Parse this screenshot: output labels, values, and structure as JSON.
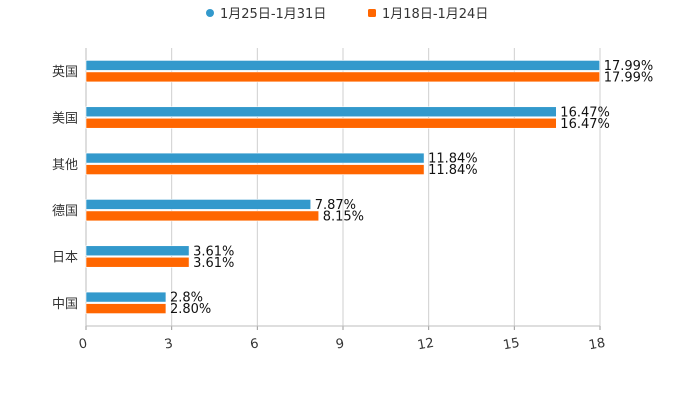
{
  "chart_data": {
    "type": "bar",
    "orientation": "horizontal",
    "categories": [
      "英国",
      "美国",
      "其他",
      "德国",
      "日本",
      "中国"
    ],
    "series": [
      {
        "name": "1月25日-1月31日",
        "color": "#3399CC",
        "values": [
          17.99,
          16.47,
          11.84,
          7.87,
          3.61,
          2.8
        ],
        "labels": [
          "17.99%",
          "16.47%",
          "11.84%",
          "7.87%",
          "3.61%",
          "2.8%"
        ]
      },
      {
        "name": "1月18日-1月24日",
        "color": "#FF6600",
        "values": [
          17.99,
          16.47,
          11.84,
          8.15,
          3.61,
          2.8
        ],
        "labels": [
          "17.99%",
          "16.47%",
          "11.84%",
          "8.15%",
          "3.61%",
          "2.80%"
        ]
      }
    ],
    "xlim": [
      0,
      18
    ],
    "xticks": [
      0,
      3,
      6,
      9,
      12,
      15,
      18
    ],
    "xtick_labels": [
      "0",
      "3",
      "6",
      "9",
      "12",
      "15",
      "18"
    ],
    "grid": true,
    "legend": "top-center",
    "title": "",
    "xlabel": "",
    "ylabel": ""
  }
}
